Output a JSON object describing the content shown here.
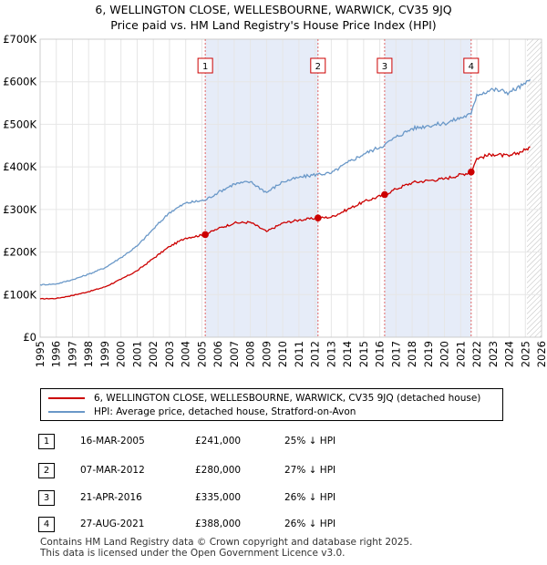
{
  "title_line1": "6, WELLINGTON CLOSE, WELLESBOURNE, WARWICK, CV35 9JQ",
  "title_line2": "Price paid vs. HM Land Registry's House Price Index (HPI)",
  "colors": {
    "property": "#cc0000",
    "hpi": "#6a98c8",
    "shade": "#e6ecf8",
    "vline": "#e06666",
    "grid": "#e6e6e6"
  },
  "chart_data": {
    "type": "line",
    "x_range": [
      1995,
      2026
    ],
    "ylim": [
      0,
      700000
    ],
    "y_ticks": [
      {
        "value": 0,
        "label": "£0"
      },
      {
        "value": 100000,
        "label": "£100K"
      },
      {
        "value": 200000,
        "label": "£200K"
      },
      {
        "value": 300000,
        "label": "£300K"
      },
      {
        "value": 400000,
        "label": "£400K"
      },
      {
        "value": 500000,
        "label": "£500K"
      },
      {
        "value": 600000,
        "label": "£600K"
      },
      {
        "value": 700000,
        "label": "£700K"
      }
    ],
    "x_ticks": [
      "1995",
      "1996",
      "1997",
      "1998",
      "1999",
      "2000",
      "2001",
      "2002",
      "2003",
      "2004",
      "2005",
      "2006",
      "2007",
      "2008",
      "2009",
      "2010",
      "2011",
      "2012",
      "2013",
      "2014",
      "2015",
      "2016",
      "2017",
      "2018",
      "2019",
      "2020",
      "2021",
      "2022",
      "2023",
      "2024",
      "2025",
      "2026"
    ],
    "shaded_ranges": [
      [
        2005.21,
        2012.18
      ],
      [
        2016.3,
        2021.65
      ]
    ],
    "forecast_start": 2025.1,
    "series": [
      {
        "name": "6, WELLINGTON CLOSE, WELLESBOURNE, WARWICK, CV35 9JQ (detached house)",
        "color": "#cc0000",
        "points": [
          [
            1995.0,
            90000
          ],
          [
            1996.0,
            91000
          ],
          [
            1997.0,
            98000
          ],
          [
            1998.0,
            107000
          ],
          [
            1999.0,
            118000
          ],
          [
            2000.0,
            136000
          ],
          [
            2001.0,
            156000
          ],
          [
            2002.0,
            185000
          ],
          [
            2003.0,
            213000
          ],
          [
            2004.0,
            233000
          ],
          [
            2005.21,
            241000
          ],
          [
            2006.0,
            255000
          ],
          [
            2007.0,
            268000
          ],
          [
            2008.0,
            270000
          ],
          [
            2009.0,
            248000
          ],
          [
            2010.0,
            268000
          ],
          [
            2011.0,
            275000
          ],
          [
            2012.18,
            280000
          ],
          [
            2013.0,
            282000
          ],
          [
            2014.0,
            300000
          ],
          [
            2015.0,
            318000
          ],
          [
            2016.3,
            335000
          ],
          [
            2017.0,
            348000
          ],
          [
            2018.0,
            363000
          ],
          [
            2019.0,
            368000
          ],
          [
            2020.0,
            372000
          ],
          [
            2021.65,
            388000
          ],
          [
            2022.0,
            420000
          ],
          [
            2023.0,
            430000
          ],
          [
            2024.0,
            425000
          ],
          [
            2025.0,
            440000
          ],
          [
            2025.3,
            447000
          ]
        ]
      },
      {
        "name": "HPI: Average price, detached house, Stratford-on-Avon",
        "color": "#6a98c8",
        "points": [
          [
            1995.0,
            123000
          ],
          [
            1996.0,
            125000
          ],
          [
            1997.0,
            135000
          ],
          [
            1998.0,
            148000
          ],
          [
            1999.0,
            163000
          ],
          [
            2000.0,
            187000
          ],
          [
            2001.0,
            214000
          ],
          [
            2002.0,
            254000
          ],
          [
            2003.0,
            293000
          ],
          [
            2004.0,
            315000
          ],
          [
            2005.21,
            322000
          ],
          [
            2006.0,
            340000
          ],
          [
            2007.0,
            360000
          ],
          [
            2008.0,
            365000
          ],
          [
            2009.0,
            340000
          ],
          [
            2010.0,
            365000
          ],
          [
            2011.0,
            375000
          ],
          [
            2012.18,
            383000
          ],
          [
            2013.0,
            385000
          ],
          [
            2014.0,
            410000
          ],
          [
            2015.0,
            430000
          ],
          [
            2016.3,
            452000
          ],
          [
            2017.0,
            470000
          ],
          [
            2018.0,
            490000
          ],
          [
            2019.0,
            497000
          ],
          [
            2020.0,
            502000
          ],
          [
            2021.65,
            524000
          ],
          [
            2022.0,
            570000
          ],
          [
            2023.0,
            582000
          ],
          [
            2024.0,
            575000
          ],
          [
            2025.0,
            595000
          ],
          [
            2025.3,
            605000
          ]
        ]
      }
    ],
    "sales": [
      {
        "num": "1",
        "x": 2005.21,
        "value": 241000
      },
      {
        "num": "2",
        "x": 2012.18,
        "value": 280000
      },
      {
        "num": "3",
        "x": 2016.3,
        "value": 335000
      },
      {
        "num": "4",
        "x": 2021.65,
        "value": 388000
      }
    ]
  },
  "legend": {
    "property_label": "6, WELLINGTON CLOSE, WELLESBOURNE, WARWICK, CV35 9JQ (detached house)",
    "hpi_label": "HPI: Average price, detached house, Stratford-on-Avon"
  },
  "transactions": [
    {
      "num": "1",
      "date": "16-MAR-2005",
      "price": "£241,000",
      "hpi": "25% ↓ HPI"
    },
    {
      "num": "2",
      "date": "07-MAR-2012",
      "price": "£280,000",
      "hpi": "27% ↓ HPI"
    },
    {
      "num": "3",
      "date": "21-APR-2016",
      "price": "£335,000",
      "hpi": "26% ↓ HPI"
    },
    {
      "num": "4",
      "date": "27-AUG-2021",
      "price": "£388,000",
      "hpi": "26% ↓ HPI"
    }
  ],
  "footer": {
    "line1": "Contains HM Land Registry data © Crown copyright and database right 2025.",
    "line2": "This data is licensed under the Open Government Licence v3.0."
  }
}
